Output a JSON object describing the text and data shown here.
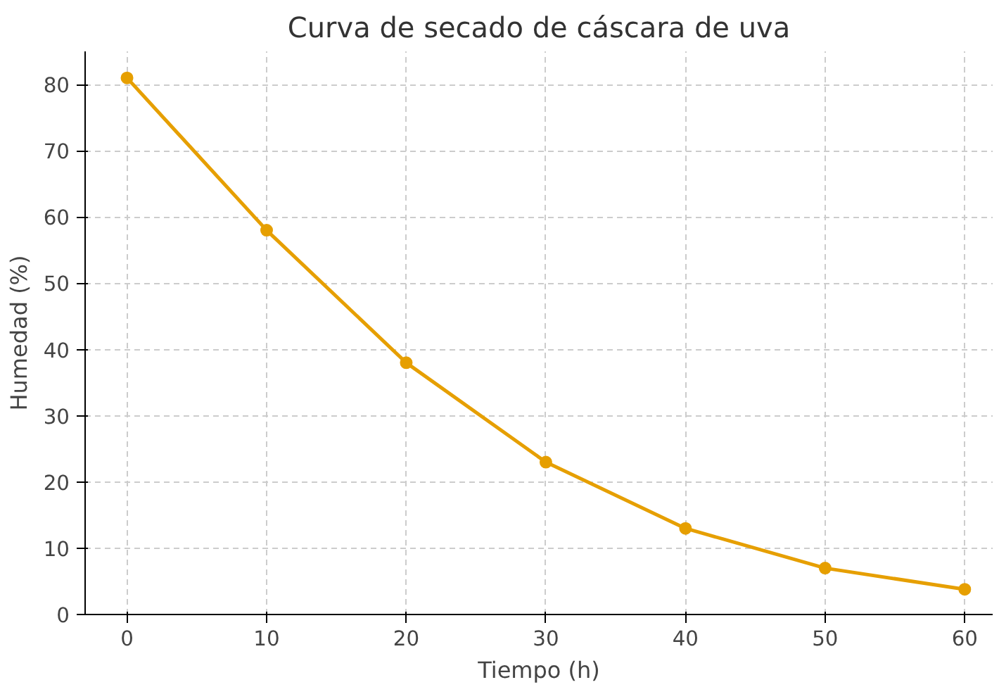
{
  "chart_data": {
    "type": "line",
    "title": "Curva de secado de cáscara de uva",
    "xlabel": "Tiempo (h)",
    "ylabel": "Humedad (%)",
    "x": [
      0,
      10,
      20,
      30,
      40,
      50,
      60
    ],
    "series": [
      {
        "color": "#e69f00",
        "values": [
          81,
          58,
          38,
          23,
          13,
          7,
          3.8
        ]
      }
    ],
    "xlim": [
      -3,
      62
    ],
    "ylim": [
      0,
      85
    ],
    "xticks": [
      0,
      10,
      20,
      30,
      40,
      50,
      60
    ],
    "yticks": [
      0,
      10,
      20,
      30,
      40,
      50,
      60,
      70,
      80
    ],
    "grid": true,
    "marker": "circle",
    "line_style": "solid"
  }
}
